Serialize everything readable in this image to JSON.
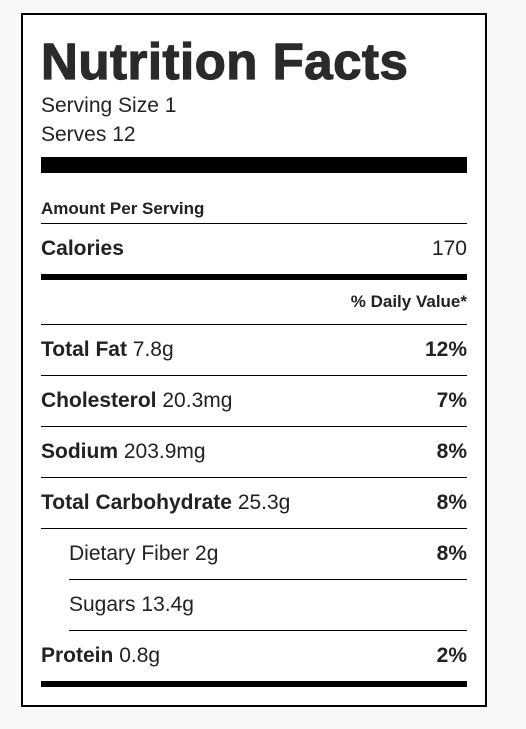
{
  "title": "Nutrition Facts",
  "serving_size": "Serving Size 1",
  "serves": "Serves 12",
  "amount_per_serving": "Amount Per Serving",
  "calories": {
    "label": "Calories",
    "value": "170"
  },
  "daily_value_header": "% Daily Value*",
  "nutrients": [
    {
      "name": "Total Fat",
      "amount": "7.8g",
      "dv": "12%"
    },
    {
      "name": "Cholesterol",
      "amount": "20.3mg",
      "dv": "7%"
    },
    {
      "name": "Sodium",
      "amount": "203.9mg",
      "dv": "8%"
    },
    {
      "name": "Total Carbohydrate",
      "amount": "25.3g",
      "dv": "8%"
    }
  ],
  "sub_nutrients": [
    {
      "name": "Dietary Fiber",
      "amount": "2g",
      "dv": "8%"
    },
    {
      "name": "Sugars",
      "amount": "13.4g",
      "dv": ""
    }
  ],
  "protein": {
    "name": "Protein",
    "amount": "0.8g",
    "dv": "2%"
  }
}
